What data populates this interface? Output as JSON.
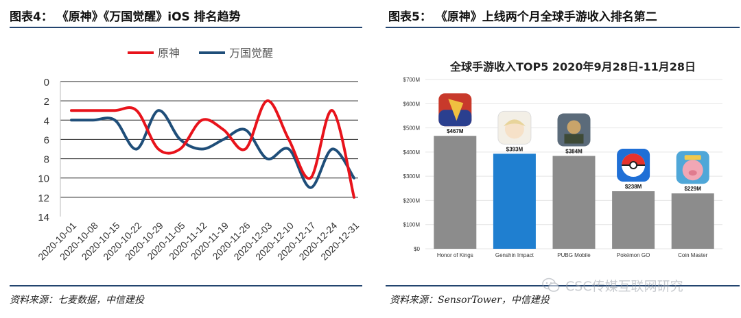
{
  "left": {
    "figure_title": "图表4：  《原神》《万国觉醒》iOS 排名趋势",
    "source": "资料来源：七麦数据，中信建投"
  },
  "right": {
    "figure_title": "图表5：  《原神》上线两个月全球手游收入排名第二",
    "source": "资料来源：SensorTower，中信建投"
  },
  "watermark": "CSC传媒互联网研究",
  "colors": {
    "genshin_line": "#e8131b",
    "rok_line": "#1f4e79",
    "bar_gray": "#8c8c8c",
    "bar_highlight": "#1f7fd0",
    "rule": "#23446f"
  },
  "chart_data": [
    {
      "type": "line",
      "title": "",
      "xlabel": "",
      "ylabel": "",
      "y_inverted": true,
      "ylim": [
        0,
        14
      ],
      "y_ticks": [
        0,
        2,
        4,
        6,
        8,
        10,
        12,
        14
      ],
      "grid": "horizontal",
      "legend_position": "top",
      "x": [
        "2020-10-01",
        "2020-10-08",
        "2020-10-15",
        "2020-10-22",
        "2020-10-29",
        "2020-11-05",
        "2020-11-12",
        "2020-11-19",
        "2020-11-26",
        "2020-12-03",
        "2020-12-10",
        "2020-12-17",
        "2020-12-24",
        "2020-12-31"
      ],
      "series": [
        {
          "name": "原神",
          "color": "#e8131b",
          "values": [
            3,
            3,
            3,
            3,
            7,
            7,
            4,
            5,
            7,
            2,
            6,
            10,
            3,
            12
          ]
        },
        {
          "name": "万国觉醒",
          "color": "#1f4e79",
          "values": [
            4,
            4,
            4,
            7,
            3,
            6,
            7,
            6,
            5,
            8,
            7,
            11,
            7,
            10
          ]
        }
      ]
    },
    {
      "type": "bar",
      "title": "全球手游收入TOP5   2020年9月28日-11月28日",
      "xlabel": "",
      "ylabel": "",
      "ylim": [
        0,
        700
      ],
      "y_ticks": [
        0,
        100,
        200,
        300,
        400,
        500,
        600,
        700
      ],
      "y_tick_labels": [
        "$0",
        "$100M",
        "$200M",
        "$300M",
        "$400M",
        "$500M",
        "$600M",
        "$700M"
      ],
      "grid": "horizontal",
      "categories": [
        "Honor of Kings",
        "Genshin Impact",
        "PUBG Mobile",
        "Pokémon GO",
        "Coin Master"
      ],
      "values": [
        467,
        393,
        384,
        238,
        229
      ],
      "data_labels": [
        "$467M",
        "$393M",
        "$384M",
        "$238M",
        "$229M"
      ],
      "highlight_index": 1,
      "bar_icons": [
        "honor-of-kings-app-icon",
        "genshin-impact-app-icon",
        "pubg-mobile-app-icon",
        "pokemon-go-app-icon",
        "coin-master-app-icon"
      ]
    }
  ]
}
